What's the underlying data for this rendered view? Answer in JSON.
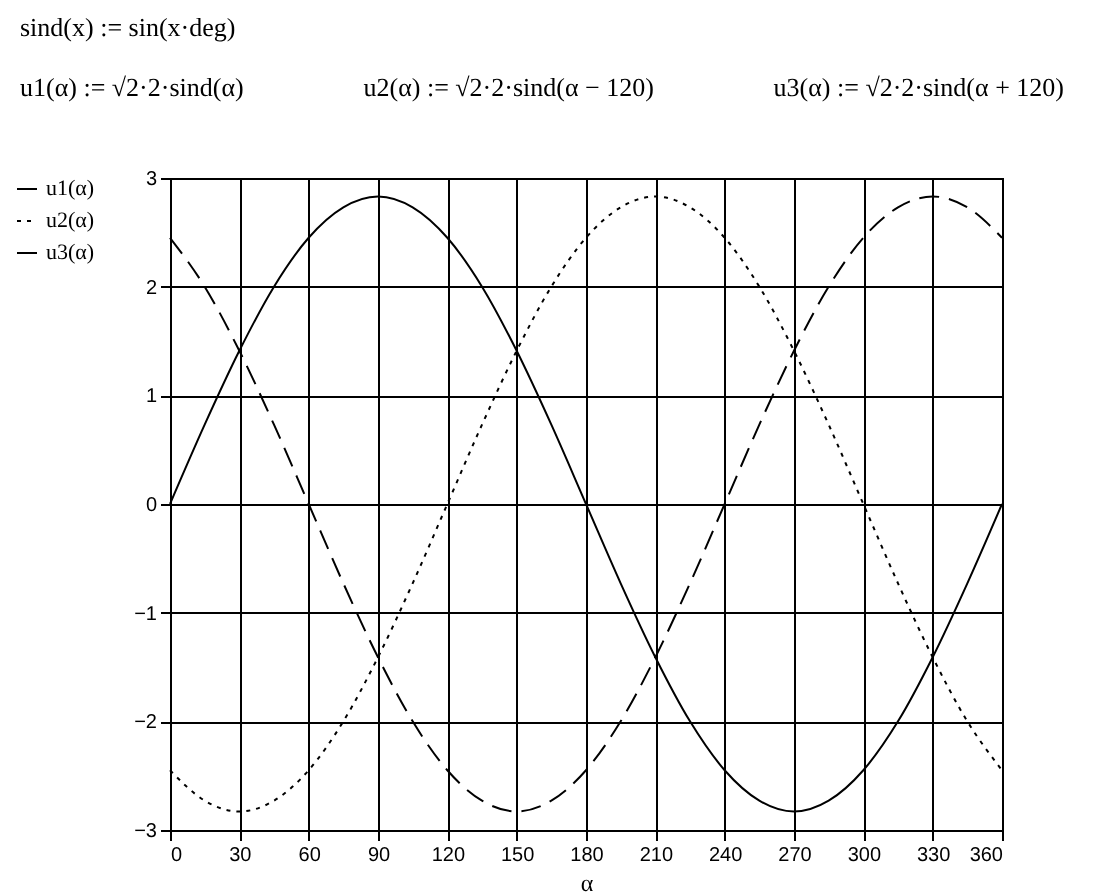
{
  "chart_data": {
    "type": "line",
    "xlabel": "α",
    "annotations": [
      "sind(x) := sin(x·deg)",
      "u1(α) := √2·2·sind(α)",
      "u2(α) := √2·2·sind(α − 120)",
      "u3(α) := √2·2·sind(α + 120)"
    ],
    "x": [
      0,
      15,
      30,
      45,
      60,
      75,
      90,
      105,
      120,
      135,
      150,
      165,
      180,
      195,
      210,
      225,
      240,
      255,
      270,
      285,
      300,
      315,
      330,
      345,
      360
    ],
    "series": [
      {
        "name": "u1(α)",
        "color": "#000000",
        "line_style": "solid",
        "values": [
          0,
          0.73,
          1.41,
          2,
          2.45,
          2.73,
          2.83,
          2.73,
          2.45,
          2,
          1.41,
          0.73,
          0,
          -0.73,
          -1.41,
          -2,
          -2.45,
          -2.73,
          -2.83,
          -2.73,
          -2.45,
          -2,
          -1.41,
          -0.73,
          0
        ]
      },
      {
        "name": "u2(α)",
        "color": "#000000",
        "line_style": "dotted",
        "values": [
          -2.45,
          -2.73,
          -2.83,
          -2.73,
          -2.45,
          -2,
          -1.41,
          -0.73,
          0,
          0.73,
          1.41,
          2,
          2.45,
          2.73,
          2.83,
          2.73,
          2.45,
          2,
          1.41,
          0.73,
          0,
          -0.73,
          -1.41,
          -2,
          -2.45
        ]
      },
      {
        "name": "u3(α)",
        "color": "#000000",
        "line_style": "dashed",
        "values": [
          2.45,
          2,
          1.41,
          0.73,
          0,
          -0.73,
          -1.41,
          -2,
          -2.45,
          -2.73,
          -2.83,
          -2.73,
          -2.45,
          -2,
          -1.41,
          -0.73,
          0,
          0.73,
          1.41,
          2,
          2.45,
          2.73,
          2.83,
          2.73,
          2.45
        ]
      }
    ],
    "xlim": [
      0,
      360
    ],
    "xticks": [
      0,
      30,
      60,
      90,
      120,
      150,
      180,
      210,
      240,
      270,
      300,
      330,
      360
    ],
    "ylim": [
      -3,
      3
    ],
    "yticks": [
      -3,
      -2,
      -1,
      0,
      1,
      2,
      3
    ],
    "grid": true,
    "legend": "left"
  }
}
